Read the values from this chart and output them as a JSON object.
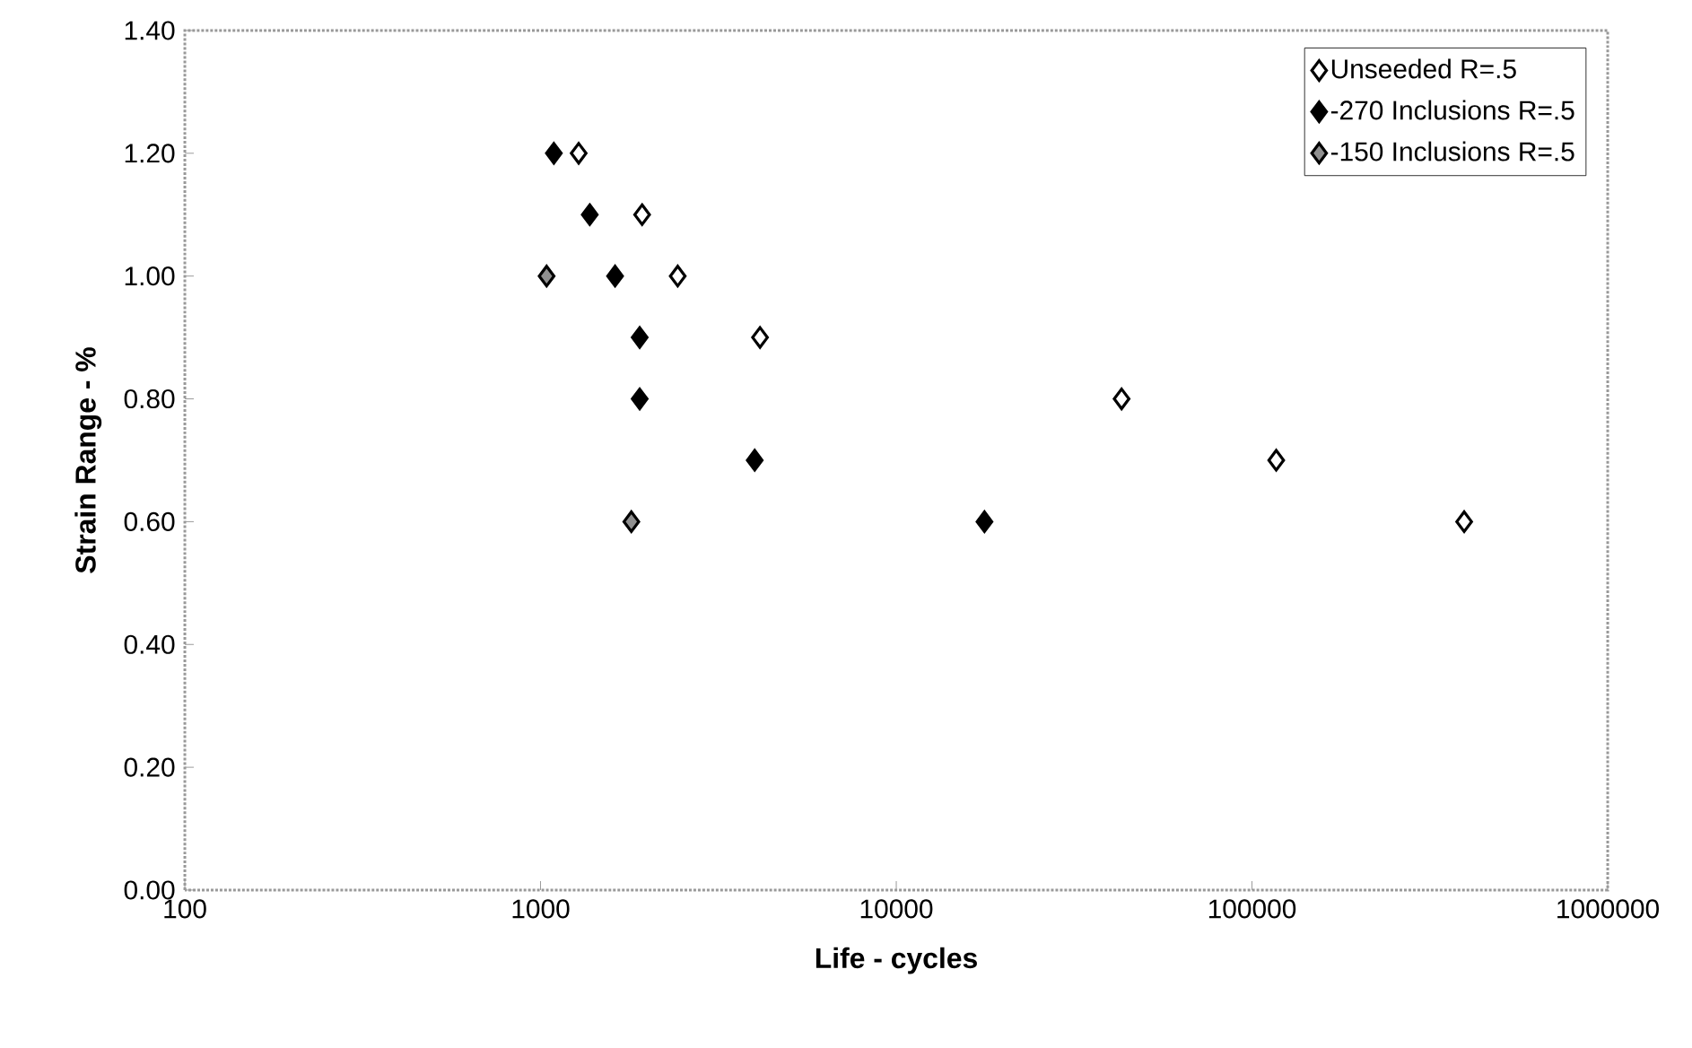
{
  "chart_data": {
    "type": "scatter",
    "xlabel": "Life - cycles",
    "ylabel": "Strain Range - %",
    "log": "x",
    "marker": "diamond",
    "legend": "top right",
    "xlim": [
      100,
      1000000
    ],
    "xticks": [
      100,
      1000,
      10000,
      100000,
      1000000
    ],
    "ylim": [
      0,
      1.4
    ],
    "yticks": [
      {
        "value": 0,
        "label": "0.00"
      },
      {
        "value": 0.2,
        "label": "0.20"
      },
      {
        "value": 0.4,
        "label": "0.40"
      },
      {
        "value": 0.6,
        "label": "0.60"
      },
      {
        "value": 0.8,
        "label": "0.80"
      },
      {
        "value": 1.0,
        "label": "1.00"
      },
      {
        "value": 1.2,
        "label": "1.20"
      },
      {
        "value": 1.4,
        "label": "1.40"
      }
    ],
    "series": [
      {
        "name": "Unseeded R=.5",
        "color": "#ffffff",
        "x": [
          1280,
          1930,
          2430,
          4140,
          43000,
          117000,
          395000
        ],
        "values": [
          1.2,
          1.1,
          1.0,
          0.9,
          0.8,
          0.7,
          0.6
        ]
      },
      {
        "name": "-270 Inclusions R=.5",
        "color": "#000000",
        "x": [
          1090,
          1375,
          1620,
          1900,
          1900,
          4000,
          17700
        ],
        "values": [
          1.2,
          1.1,
          1.0,
          0.9,
          0.8,
          0.7,
          0.6
        ]
      },
      {
        "name": "-150 Inclusions R=.5",
        "color": "#909090",
        "x": [
          1040,
          1800
        ],
        "values": [
          1.0,
          0.6
        ]
      }
    ]
  }
}
